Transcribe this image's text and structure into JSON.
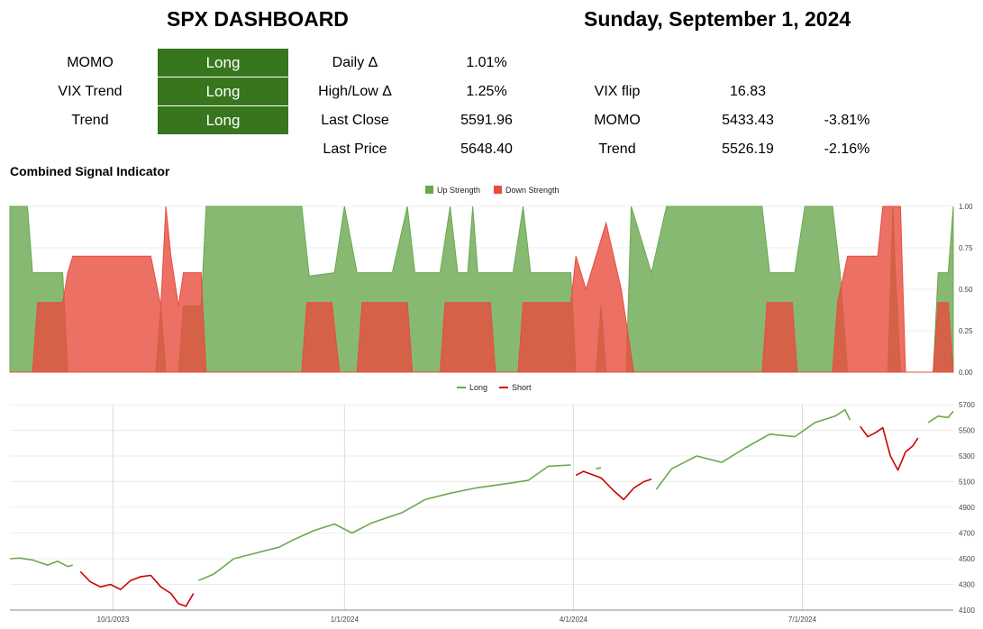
{
  "dashboard": {
    "title": "SPX DASHBOARD",
    "date": "Sunday, September 1, 2024",
    "signals": [
      {
        "label": "MOMO",
        "value": "Long"
      },
      {
        "label": "VIX Trend",
        "value": "Long"
      },
      {
        "label": "Trend",
        "value": "Long"
      }
    ],
    "stats": [
      {
        "label": "Daily Δ",
        "value": "1.01%"
      },
      {
        "label": "High/Low Δ",
        "value": "1.25%"
      },
      {
        "label": "Last Close",
        "value": "5591.96"
      },
      {
        "label": "Last Price",
        "value": "5648.40"
      }
    ],
    "levels": [
      {
        "label": "VIX flip",
        "value": "16.83",
        "change": ""
      },
      {
        "label": "MOMO",
        "value": "5433.43",
        "change": "-3.81%"
      },
      {
        "label": "Trend",
        "value": "5526.19",
        "change": "-2.16%"
      }
    ],
    "signal_color": "#38761d"
  },
  "chart_data": [
    {
      "type": "area",
      "title": "Combined Signal Indicator",
      "legend": [
        "Up Strength",
        "Down Strength"
      ],
      "legend_position": "top",
      "colors": {
        "Up Strength": "#6aa84f",
        "Down Strength": "#e84c3d"
      },
      "ylim": [
        0,
        1
      ],
      "yticks": [
        "1.00",
        "0.75",
        "0.50",
        "0.25",
        "0.00"
      ],
      "x_range": [
        "2023-08-21",
        "2024-08-30"
      ],
      "series": [
        {
          "name": "Up Strength",
          "points": [
            [
              "2023-08-21",
              1.0
            ],
            [
              "2023-08-28",
              1.0
            ],
            [
              "2023-08-30",
              0.6
            ],
            [
              "2023-09-11",
              0.6
            ],
            [
              "2023-09-13",
              0.0
            ],
            [
              "2023-10-18",
              0.0
            ],
            [
              "2023-10-20",
              0.4
            ],
            [
              "2023-10-22",
              0.0
            ],
            [
              "2023-10-27",
              0.0
            ],
            [
              "2023-10-29",
              0.4
            ],
            [
              "2023-11-05",
              0.4
            ],
            [
              "2023-11-07",
              1.0
            ],
            [
              "2023-12-15",
              1.0
            ],
            [
              "2023-12-18",
              0.58
            ],
            [
              "2023-12-28",
              0.6
            ],
            [
              "2024-01-01",
              1.0
            ],
            [
              "2024-01-06",
              0.6
            ],
            [
              "2024-01-20",
              0.6
            ],
            [
              "2024-01-26",
              1.0
            ],
            [
              "2024-01-29",
              0.6
            ],
            [
              "2024-02-08",
              0.6
            ],
            [
              "2024-02-12",
              1.0
            ],
            [
              "2024-02-15",
              0.6
            ],
            [
              "2024-02-19",
              0.6
            ],
            [
              "2024-02-21",
              1.0
            ],
            [
              "2024-02-23",
              0.6
            ],
            [
              "2024-03-08",
              0.6
            ],
            [
              "2024-03-12",
              1.0
            ],
            [
              "2024-03-15",
              0.6
            ],
            [
              "2024-03-31",
              0.6
            ],
            [
              "2024-04-02",
              0.0
            ],
            [
              "2024-04-10",
              0.0
            ],
            [
              "2024-04-12",
              0.4
            ],
            [
              "2024-04-14",
              0.0
            ],
            [
              "2024-04-22",
              0.0
            ],
            [
              "2024-04-24",
              1.0
            ],
            [
              "2024-05-02",
              0.6
            ],
            [
              "2024-05-08",
              1.0
            ],
            [
              "2024-06-15",
              1.0
            ],
            [
              "2024-06-18",
              0.6
            ],
            [
              "2024-06-28",
              0.6
            ],
            [
              "2024-07-02",
              1.0
            ],
            [
              "2024-07-13",
              1.0
            ],
            [
              "2024-07-16",
              0.6
            ],
            [
              "2024-07-19",
              0.0
            ],
            [
              "2024-08-04",
              0.0
            ],
            [
              "2024-08-06",
              1.0
            ],
            [
              "2024-08-07",
              0.6
            ],
            [
              "2024-08-09",
              0.0
            ],
            [
              "2024-08-22",
              0.0
            ],
            [
              "2024-08-24",
              0.6
            ],
            [
              "2024-08-28",
              0.6
            ],
            [
              "2024-08-30",
              1.0
            ]
          ]
        },
        {
          "name": "Down Strength",
          "points": [
            [
              "2023-08-21",
              0.0
            ],
            [
              "2023-08-30",
              0.0
            ],
            [
              "2023-09-01",
              0.42
            ],
            [
              "2023-09-11",
              0.42
            ],
            [
              "2023-09-13",
              0.6
            ],
            [
              "2023-09-15",
              0.7
            ],
            [
              "2023-10-16",
              0.7
            ],
            [
              "2023-10-20",
              0.4
            ],
            [
              "2023-10-22",
              1.0
            ],
            [
              "2023-10-24",
              0.7
            ],
            [
              "2023-10-27",
              0.4
            ],
            [
              "2023-10-29",
              0.6
            ],
            [
              "2023-11-05",
              0.6
            ],
            [
              "2023-11-07",
              0.0
            ],
            [
              "2023-12-15",
              0.0
            ],
            [
              "2023-12-17",
              0.42
            ],
            [
              "2023-12-27",
              0.42
            ],
            [
              "2023-12-30",
              0.0
            ],
            [
              "2024-01-06",
              0.0
            ],
            [
              "2024-01-08",
              0.42
            ],
            [
              "2024-01-26",
              0.42
            ],
            [
              "2024-01-28",
              0.0
            ],
            [
              "2024-02-08",
              0.0
            ],
            [
              "2024-02-10",
              0.42
            ],
            [
              "2024-02-28",
              0.42
            ],
            [
              "2024-03-01",
              0.0
            ],
            [
              "2024-03-10",
              0.0
            ],
            [
              "2024-03-12",
              0.42
            ],
            [
              "2024-03-31",
              0.42
            ],
            [
              "2024-04-02",
              0.7
            ],
            [
              "2024-04-06",
              0.5
            ],
            [
              "2024-04-10",
              0.7
            ],
            [
              "2024-04-14",
              0.9
            ],
            [
              "2024-04-20",
              0.5
            ],
            [
              "2024-04-25",
              0.0
            ],
            [
              "2024-06-15",
              0.0
            ],
            [
              "2024-06-17",
              0.42
            ],
            [
              "2024-06-27",
              0.42
            ],
            [
              "2024-06-29",
              0.0
            ],
            [
              "2024-07-13",
              0.0
            ],
            [
              "2024-07-15",
              0.42
            ],
            [
              "2024-07-19",
              0.7
            ],
            [
              "2024-07-31",
              0.7
            ],
            [
              "2024-08-02",
              1.0
            ],
            [
              "2024-08-09",
              1.0
            ],
            [
              "2024-08-11",
              0.0
            ],
            [
              "2024-08-22",
              0.0
            ],
            [
              "2024-08-24",
              0.42
            ],
            [
              "2024-08-28",
              0.42
            ],
            [
              "2024-08-30",
              0.0
            ]
          ]
        }
      ]
    },
    {
      "type": "line",
      "legend": [
        "Long",
        "Short"
      ],
      "legend_position": "top",
      "colors": {
        "Long": "#6aa84f",
        "Short": "#cc0000"
      },
      "ylim": [
        4100,
        5700
      ],
      "yticks": [
        5700,
        5500,
        5300,
        5100,
        4900,
        4700,
        4500,
        4300,
        4100
      ],
      "xticks": [
        "10/1/2023",
        "1/1/2024",
        "4/1/2024",
        "7/1/2024"
      ],
      "x_range": [
        "2023-08-21",
        "2024-08-30"
      ],
      "segments": [
        {
          "series": "Long",
          "points": [
            [
              "2023-08-21",
              4500
            ],
            [
              "2023-08-25",
              4505
            ],
            [
              "2023-08-30",
              4490
            ],
            [
              "2023-09-05",
              4450
            ],
            [
              "2023-09-09",
              4480
            ],
            [
              "2023-09-13",
              4440
            ],
            [
              "2023-09-15",
              4450
            ]
          ]
        },
        {
          "series": "Short",
          "points": [
            [
              "2023-09-18",
              4400
            ],
            [
              "2023-09-22",
              4320
            ],
            [
              "2023-09-26",
              4280
            ],
            [
              "2023-09-30",
              4300
            ],
            [
              "2023-10-04",
              4260
            ],
            [
              "2023-10-08",
              4330
            ],
            [
              "2023-10-12",
              4360
            ],
            [
              "2023-10-16",
              4370
            ],
            [
              "2023-10-20",
              4280
            ],
            [
              "2023-10-24",
              4230
            ],
            [
              "2023-10-27",
              4150
            ],
            [
              "2023-10-30",
              4130
            ],
            [
              "2023-11-02",
              4230
            ]
          ]
        },
        {
          "series": "Long",
          "points": [
            [
              "2023-11-04",
              4330
            ],
            [
              "2023-11-10",
              4380
            ],
            [
              "2023-11-18",
              4500
            ],
            [
              "2023-11-28",
              4550
            ],
            [
              "2023-12-06",
              4590
            ],
            [
              "2023-12-12",
              4650
            ],
            [
              "2023-12-20",
              4720
            ],
            [
              "2023-12-28",
              4770
            ],
            [
              "2024-01-04",
              4700
            ],
            [
              "2024-01-12",
              4780
            ],
            [
              "2024-01-24",
              4860
            ],
            [
              "2024-02-02",
              4960
            ],
            [
              "2024-02-12",
              5010
            ],
            [
              "2024-02-22",
              5050
            ],
            [
              "2024-03-04",
              5080
            ],
            [
              "2024-03-14",
              5110
            ],
            [
              "2024-03-22",
              5220
            ],
            [
              "2024-03-31",
              5230
            ]
          ]
        },
        {
          "series": "Long",
          "points": [
            [
              "2024-04-10",
              5200
            ],
            [
              "2024-04-12",
              5210
            ]
          ]
        },
        {
          "series": "Short",
          "points": [
            [
              "2024-04-02",
              5150
            ],
            [
              "2024-04-05",
              5180
            ],
            [
              "2024-04-12",
              5130
            ],
            [
              "2024-04-17",
              5030
            ],
            [
              "2024-04-21",
              4960
            ],
            [
              "2024-04-25",
              5050
            ],
            [
              "2024-04-29",
              5100
            ],
            [
              "2024-05-02",
              5120
            ]
          ]
        },
        {
          "series": "Long",
          "points": [
            [
              "2024-05-04",
              5040
            ],
            [
              "2024-05-10",
              5200
            ],
            [
              "2024-05-20",
              5300
            ],
            [
              "2024-05-30",
              5250
            ],
            [
              "2024-06-08",
              5360
            ],
            [
              "2024-06-18",
              5470
            ],
            [
              "2024-06-28",
              5450
            ],
            [
              "2024-07-06",
              5560
            ],
            [
              "2024-07-14",
              5610
            ],
            [
              "2024-07-18",
              5660
            ],
            [
              "2024-07-20",
              5580
            ]
          ]
        },
        {
          "series": "Short",
          "points": [
            [
              "2024-07-24",
              5530
            ],
            [
              "2024-07-27",
              5450
            ],
            [
              "2024-07-30",
              5480
            ],
            [
              "2024-08-02",
              5520
            ],
            [
              "2024-08-05",
              5300
            ],
            [
              "2024-08-08",
              5190
            ],
            [
              "2024-08-11",
              5330
            ],
            [
              "2024-08-14",
              5380
            ],
            [
              "2024-08-16",
              5440
            ]
          ]
        },
        {
          "series": "Long",
          "points": [
            [
              "2024-08-20",
              5560
            ],
            [
              "2024-08-24",
              5610
            ],
            [
              "2024-08-28",
              5600
            ],
            [
              "2024-08-30",
              5648
            ]
          ]
        }
      ]
    }
  ]
}
